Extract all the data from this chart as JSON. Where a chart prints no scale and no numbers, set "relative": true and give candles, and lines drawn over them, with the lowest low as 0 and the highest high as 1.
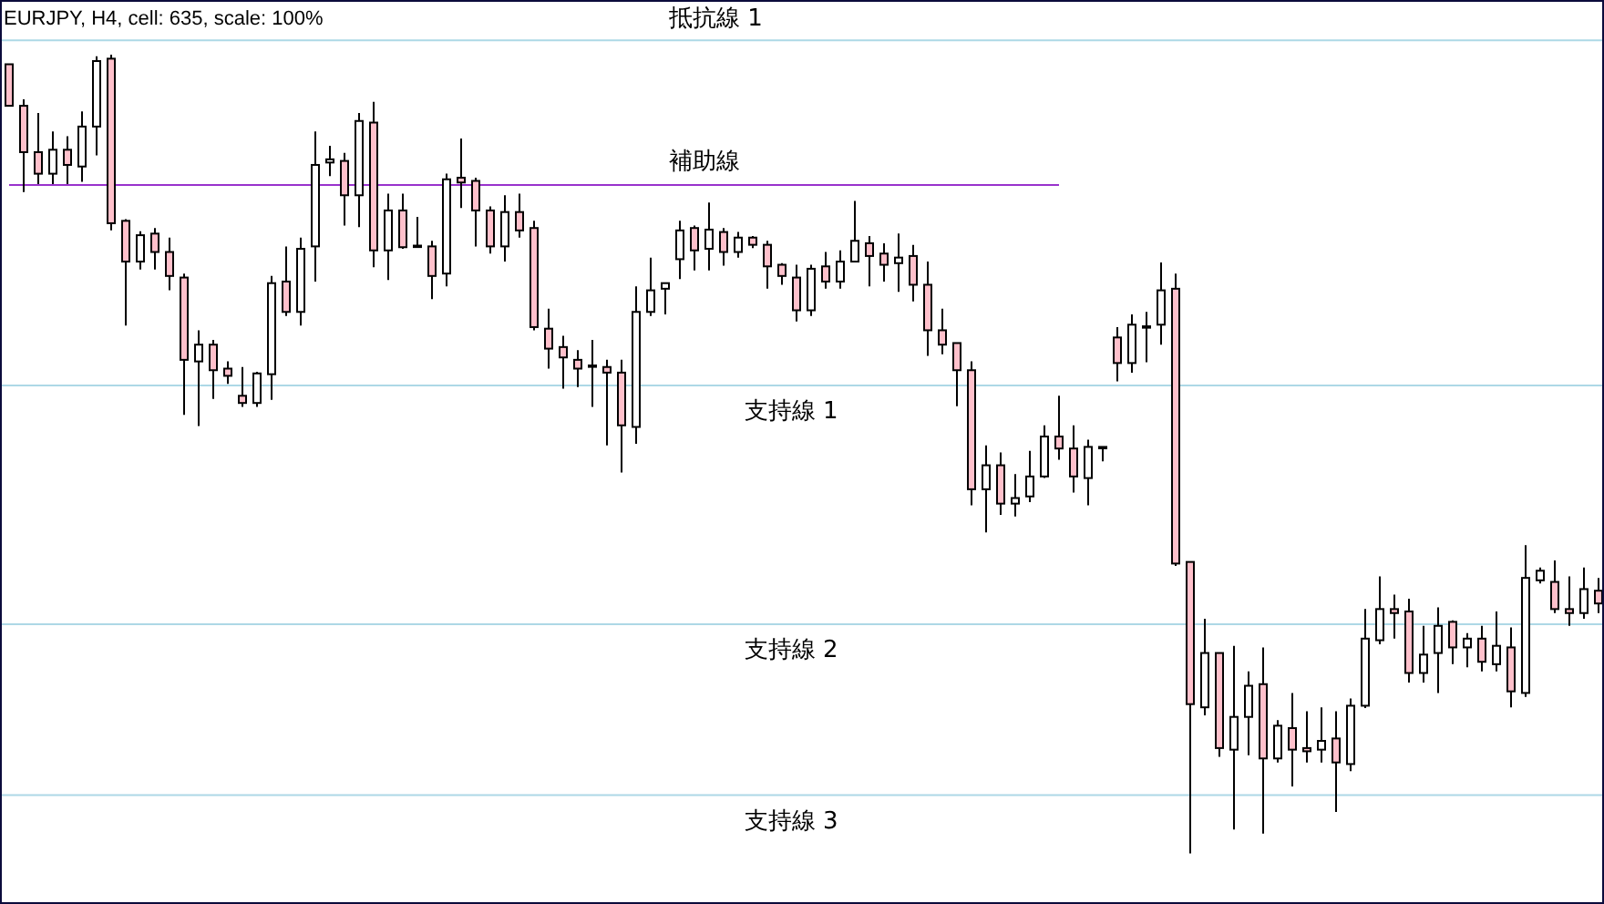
{
  "chart_data": {
    "type": "candlestick",
    "title": "EURJPY, H4, cell: 635, scale: 100%",
    "relative": true,
    "categories": [
      null,
      null,
      null,
      null,
      null,
      null,
      null,
      null,
      null,
      null,
      null,
      null,
      null,
      null,
      null,
      null,
      null,
      null,
      null,
      null,
      null,
      null,
      null,
      null,
      null,
      null,
      null,
      null,
      null,
      null,
      null,
      null,
      null,
      null,
      null,
      null,
      null,
      null,
      null,
      null,
      null,
      null,
      null,
      null,
      null,
      null,
      null,
      null,
      null,
      null,
      null,
      null,
      null,
      null,
      null,
      null,
      null,
      null,
      null,
      null,
      null,
      null,
      null,
      null,
      null,
      null,
      null,
      null,
      null,
      null,
      null,
      null,
      null,
      null,
      null,
      null,
      null,
      null,
      null,
      null,
      null,
      null,
      null,
      null,
      null,
      null,
      null,
      null,
      null,
      null,
      null,
      null,
      null,
      null,
      null,
      null,
      null,
      null,
      null,
      null,
      null,
      null,
      null,
      null,
      null,
      null,
      null,
      null,
      null,
      null
    ],
    "ohlc": [
      [
        0.988,
        0.988,
        0.936,
        0.936
      ],
      [
        0.936,
        0.944,
        0.828,
        0.878
      ],
      [
        0.878,
        0.927,
        0.838,
        0.851
      ],
      [
        0.851,
        0.904,
        0.838,
        0.881
      ],
      [
        0.881,
        0.898,
        0.838,
        0.862
      ],
      [
        0.86,
        0.929,
        0.841,
        0.91
      ],
      [
        0.91,
        0.998,
        0.874,
        0.992
      ],
      [
        0.995,
        1.0,
        0.78,
        0.789
      ],
      [
        0.792,
        0.794,
        0.661,
        0.741
      ],
      [
        0.741,
        0.779,
        0.731,
        0.774
      ],
      [
        0.776,
        0.783,
        0.731,
        0.753
      ],
      [
        0.753,
        0.771,
        0.705,
        0.723
      ],
      [
        0.721,
        0.726,
        0.549,
        0.618
      ],
      [
        0.616,
        0.655,
        0.535,
        0.637
      ],
      [
        0.637,
        0.643,
        0.569,
        0.605
      ],
      [
        0.607,
        0.616,
        0.588,
        0.598
      ],
      [
        0.573,
        0.609,
        0.559,
        0.564
      ],
      [
        0.564,
        0.603,
        0.559,
        0.601
      ],
      [
        0.6,
        0.723,
        0.568,
        0.714
      ],
      [
        0.716,
        0.76,
        0.673,
        0.678
      ],
      [
        0.678,
        0.771,
        0.661,
        0.757
      ],
      [
        0.76,
        0.904,
        0.716,
        0.862
      ],
      [
        0.865,
        0.886,
        0.848,
        0.869
      ],
      [
        0.867,
        0.877,
        0.786,
        0.824
      ],
      [
        0.824,
        0.927,
        0.784,
        0.917
      ],
      [
        0.915,
        0.941,
        0.734,
        0.755
      ],
      [
        0.755,
        0.826,
        0.718,
        0.805
      ],
      [
        0.805,
        0.826,
        0.757,
        0.759
      ],
      [
        0.761,
        0.797,
        0.76,
        0.76
      ],
      [
        0.76,
        0.767,
        0.694,
        0.723
      ],
      [
        0.726,
        0.851,
        0.71,
        0.844
      ],
      [
        0.846,
        0.895,
        0.808,
        0.84
      ],
      [
        0.842,
        0.846,
        0.76,
        0.805
      ],
      [
        0.805,
        0.81,
        0.751,
        0.76
      ],
      [
        0.76,
        0.824,
        0.741,
        0.803
      ],
      [
        0.803,
        0.826,
        0.771,
        0.78
      ],
      [
        0.783,
        0.792,
        0.655,
        0.659
      ],
      [
        0.657,
        0.682,
        0.607,
        0.632
      ],
      [
        0.634,
        0.648,
        0.582,
        0.621
      ],
      [
        0.618,
        0.63,
        0.584,
        0.607
      ],
      [
        0.611,
        0.643,
        0.559,
        0.611
      ],
      [
        0.609,
        0.618,
        0.511,
        0.602
      ],
      [
        0.602,
        0.618,
        0.477,
        0.536
      ],
      [
        0.534,
        0.71,
        0.513,
        0.678
      ],
      [
        0.678,
        0.746,
        0.673,
        0.705
      ],
      [
        0.707,
        0.714,
        0.675,
        0.714
      ],
      [
        0.744,
        0.792,
        0.719,
        0.78
      ],
      [
        0.783,
        0.786,
        0.73,
        0.755
      ],
      [
        0.757,
        0.815,
        0.73,
        0.781
      ],
      [
        0.778,
        0.783,
        0.736,
        0.753
      ],
      [
        0.753,
        0.778,
        0.746,
        0.771
      ],
      [
        0.771,
        0.773,
        0.758,
        0.762
      ],
      [
        0.762,
        0.767,
        0.707,
        0.735
      ],
      [
        0.737,
        0.739,
        0.712,
        0.723
      ],
      [
        0.721,
        0.737,
        0.666,
        0.68
      ],
      [
        0.68,
        0.737,
        0.673,
        0.732
      ],
      [
        0.735,
        0.753,
        0.707,
        0.716
      ],
      [
        0.716,
        0.755,
        0.707,
        0.741
      ],
      [
        0.741,
        0.817,
        0.741,
        0.767
      ],
      [
        0.764,
        0.773,
        0.71,
        0.748
      ],
      [
        0.751,
        0.764,
        0.716,
        0.737
      ],
      [
        0.739,
        0.776,
        0.703,
        0.746
      ],
      [
        0.748,
        0.762,
        0.691,
        0.712
      ],
      [
        0.712,
        0.741,
        0.623,
        0.655
      ],
      [
        0.655,
        0.682,
        0.625,
        0.637
      ],
      [
        0.639,
        0.639,
        0.56,
        0.605
      ],
      [
        0.605,
        0.616,
        0.436,
        0.456
      ],
      [
        0.456,
        0.511,
        0.402,
        0.486
      ],
      [
        0.486,
        0.502,
        0.424,
        0.438
      ],
      [
        0.438,
        0.475,
        0.422,
        0.445
      ],
      [
        0.447,
        0.504,
        0.44,
        0.472
      ],
      [
        0.472,
        0.536,
        0.47,
        0.522
      ],
      [
        0.522,
        0.573,
        0.493,
        0.507
      ],
      [
        0.507,
        0.536,
        0.452,
        0.472
      ],
      [
        0.47,
        0.518,
        0.436,
        0.509
      ],
      [
        0.509,
        0.509,
        0.491,
        0.509
      ],
      [
        0.646,
        0.659,
        0.591,
        0.614
      ],
      [
        0.614,
        0.675,
        0.602,
        0.662
      ],
      [
        0.66,
        0.678,
        0.615,
        0.66
      ],
      [
        0.662,
        0.74,
        0.637,
        0.705
      ],
      [
        0.707,
        0.726,
        0.36,
        0.363
      ],
      [
        0.365,
        0.365,
        0.0,
        0.187
      ],
      [
        0.183,
        0.294,
        0.173,
        0.251
      ],
      [
        0.251,
        0.251,
        0.121,
        0.132
      ],
      [
        0.13,
        0.26,
        0.03,
        0.171
      ],
      [
        0.171,
        0.228,
        0.123,
        0.21
      ],
      [
        0.212,
        0.258,
        0.025,
        0.119
      ],
      [
        0.119,
        0.167,
        0.114,
        0.16
      ],
      [
        0.157,
        0.201,
        0.084,
        0.13
      ],
      [
        0.132,
        0.178,
        0.114,
        0.128
      ],
      [
        0.13,
        0.183,
        0.114,
        0.141
      ],
      [
        0.144,
        0.178,
        0.052,
        0.114
      ],
      [
        0.112,
        0.194,
        0.103,
        0.185
      ],
      [
        0.185,
        0.306,
        0.182,
        0.269
      ],
      [
        0.267,
        0.347,
        0.262,
        0.306
      ],
      [
        0.306,
        0.324,
        0.269,
        0.301
      ],
      [
        0.303,
        0.319,
        0.214,
        0.226
      ],
      [
        0.226,
        0.285,
        0.214,
        0.249
      ],
      [
        0.251,
        0.308,
        0.201,
        0.285
      ],
      [
        0.29,
        0.292,
        0.237,
        0.258
      ],
      [
        0.258,
        0.276,
        0.233,
        0.269
      ],
      [
        0.269,
        0.285,
        0.228,
        0.24
      ],
      [
        0.237,
        0.303,
        0.228,
        0.26
      ],
      [
        0.258,
        0.283,
        0.183,
        0.203
      ],
      [
        0.201,
        0.386,
        0.196,
        0.345
      ],
      [
        0.342,
        0.358,
        0.338,
        0.354
      ],
      [
        0.34,
        0.367,
        0.301,
        0.306
      ],
      [
        0.306,
        0.347,
        0.285,
        0.301
      ],
      [
        0.301,
        0.358,
        0.294,
        0.331
      ],
      [
        0.329,
        0.345,
        0.301,
        0.313
      ]
    ],
    "colors": [
      "#ffc0cb",
      "#ffc0cb",
      "#ffc0cb",
      "#ffffff",
      "#ffc0cb",
      "#ffffff",
      "#ffffff",
      "#ffc0cb",
      "#ffc0cb",
      "#ffffff",
      "#ffc0cb",
      "#ffc0cb",
      "#ffc0cb",
      "#ffffff",
      "#ffc0cb",
      "#ffc0cb",
      "#ffc0cb",
      "#ffffff",
      "#ffffff",
      "#ffc0cb",
      "#ffffff",
      "#ffffff",
      "#ffffff",
      "#ffc0cb",
      "#ffffff",
      "#ffc0cb",
      "#ffffff",
      "#ffc0cb",
      "#ffc0cb",
      "#ffc0cb",
      "#ffffff",
      "#ffc0cb",
      "#ffc0cb",
      "#ffc0cb",
      "#ffffff",
      "#ffc0cb",
      "#ffc0cb",
      "#ffc0cb",
      "#ffc0cb",
      "#ffc0cb",
      "#ffffff",
      "#ffc0cb",
      "#ffc0cb",
      "#ffffff",
      "#ffffff",
      "#ffffff",
      "#ffffff",
      "#ffc0cb",
      "#ffffff",
      "#ffc0cb",
      "#ffffff",
      "#ffc0cb",
      "#ffc0cb",
      "#ffc0cb",
      "#ffc0cb",
      "#ffffff",
      "#ffc0cb",
      "#ffffff",
      "#ffffff",
      "#ffc0cb",
      "#ffc0cb",
      "#ffffff",
      "#ffc0cb",
      "#ffc0cb",
      "#ffc0cb",
      "#ffc0cb",
      "#ffc0cb",
      "#ffffff",
      "#ffc0cb",
      "#ffffff",
      "#ffffff",
      "#ffffff",
      "#ffc0cb",
      "#ffc0cb",
      "#ffffff",
      "#ffffff",
      "#ffc0cb",
      "#ffffff",
      "#ffffff",
      "#ffffff",
      "#ffc0cb",
      "#ffc0cb",
      "#ffffff",
      "#ffc0cb",
      "#ffffff",
      "#ffffff",
      "#ffc0cb",
      "#ffffff",
      "#ffc0cb",
      "#ffc0cb",
      "#ffffff",
      "#ffc0cb",
      "#ffffff",
      "#ffffff",
      "#ffffff",
      "#ffc0cb",
      "#ffc0cb",
      "#ffffff",
      "#ffffff",
      "#ffc0cb",
      "#ffffff",
      "#ffc0cb",
      "#ffffff",
      "#ffc0cb",
      "#ffffff",
      "#ffffff",
      "#ffc0cb",
      "#ffc0cb",
      "#ffffff",
      "#ffc0cb"
    ],
    "series": [
      {
        "type": "line",
        "name": "補助線",
        "color": "#9932cc",
        "values": [
          0.837,
          0.837,
          0.837,
          0.837,
          0.837,
          0.837,
          0.837,
          0.837,
          0.837,
          0.837,
          0.837,
          0.837,
          0.837,
          0.837,
          0.837,
          0.837,
          0.837,
          0.837,
          0.837,
          0.837,
          0.837,
          0.837,
          0.837,
          0.837,
          0.837,
          0.837,
          0.837,
          0.837,
          0.837,
          0.837,
          0.837,
          0.837,
          0.837,
          0.837,
          0.837,
          0.837,
          0.837,
          0.837,
          0.837,
          0.837,
          0.837,
          0.837,
          0.837,
          0.837,
          0.837,
          0.837,
          0.837,
          0.837,
          0.837,
          0.837,
          0.837,
          0.837,
          0.837,
          0.837,
          0.837,
          0.837,
          0.837,
          0.837,
          0.837,
          0.837,
          0.837,
          0.837,
          0.837,
          0.837,
          0.837,
          0.837,
          0.837,
          0.837,
          0.837,
          0.837,
          0.837,
          0.837,
          0.837,
          null,
          null,
          null,
          null,
          null,
          null,
          null,
          null,
          null,
          null,
          null,
          null,
          null,
          null,
          null,
          null,
          null,
          null,
          null,
          null,
          null,
          null,
          null,
          null,
          null,
          null,
          null,
          null,
          null,
          null,
          null,
          null,
          null,
          null,
          null,
          null,
          null
        ]
      }
    ],
    "ref_lines": [
      {
        "axis": "y",
        "value": 1.018,
        "label": "抵抗線 1",
        "color": "#add8e6"
      },
      {
        "axis": "y",
        "value": 0.586,
        "label": "支持線 1",
        "color": "#add8e6"
      },
      {
        "axis": "y",
        "value": 0.287,
        "label": "支持線 2",
        "color": "#add8e6"
      },
      {
        "axis": "y",
        "value": 0.073,
        "label": "支持線 3",
        "color": "#add8e6"
      }
    ]
  }
}
